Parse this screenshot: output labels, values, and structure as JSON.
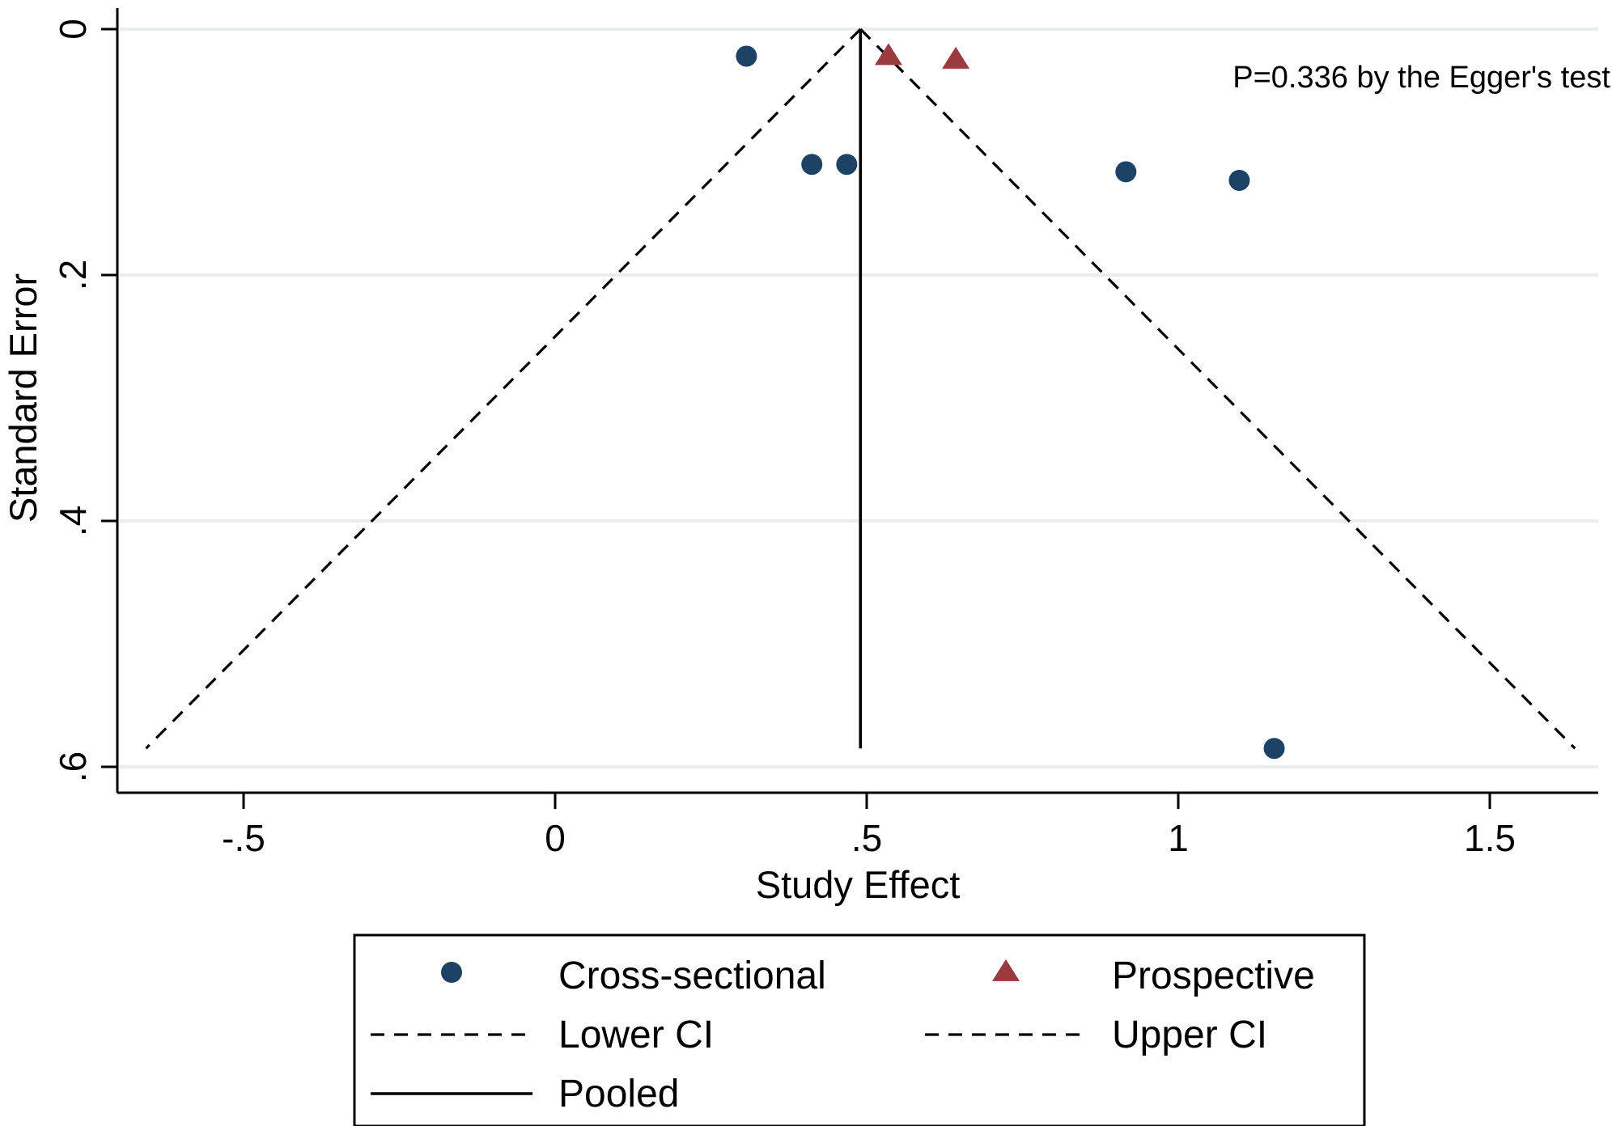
{
  "chart_data": {
    "type": "scatter",
    "xlabel": "Study Effect",
    "ylabel": "Standard Error",
    "xlim": [
      -0.67,
      1.68
    ],
    "ylim": [
      0,
      0.62
    ],
    "y_reversed": true,
    "xticks": [
      -0.5,
      0,
      0.5,
      1,
      1.5
    ],
    "xtick_labels": [
      "-.5",
      "0",
      ".5",
      "1",
      "1.5"
    ],
    "yticks": [
      0,
      0.2,
      0.4,
      0.6
    ],
    "ytick_labels": [
      "0",
      ".2",
      ".4",
      ".6"
    ],
    "grid": true,
    "annotation": "P=0.336 by the Egger's test",
    "pooled_effect": 0.49,
    "ci_bottom_se": 0.585,
    "series": [
      {
        "name": "Cross-sectional",
        "marker": "circle",
        "color": "#1d4266",
        "points": [
          {
            "x": 0.307,
            "y": 0.022
          },
          {
            "x": 0.412,
            "y": 0.11
          },
          {
            "x": 0.468,
            "y": 0.11
          },
          {
            "x": 0.916,
            "y": 0.116
          },
          {
            "x": 1.098,
            "y": 0.123
          },
          {
            "x": 1.154,
            "y": 0.585
          }
        ]
      },
      {
        "name": "Prospective",
        "marker": "triangle",
        "color": "#9b3a3f",
        "points": [
          {
            "x": 0.535,
            "y": 0.022
          },
          {
            "x": 0.643,
            "y": 0.025
          }
        ]
      }
    ],
    "legend": {
      "position": "bottom",
      "entries": [
        {
          "label": "Cross-sectional",
          "symbol": "circle",
          "color": "#1d4266"
        },
        {
          "label": "Prospective",
          "symbol": "triangle",
          "color": "#9b3a3f"
        },
        {
          "label": "Lower CI",
          "symbol": "dashed"
        },
        {
          "label": "Upper CI",
          "symbol": "dashed"
        },
        {
          "label": "Pooled",
          "symbol": "solid"
        }
      ]
    }
  }
}
